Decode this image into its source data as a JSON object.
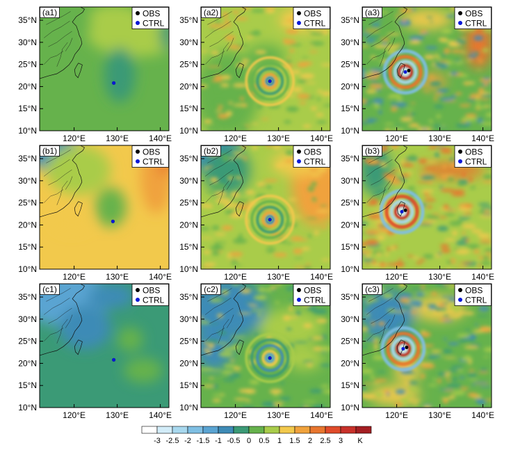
{
  "chart_data": {
    "type": "contour-map-grid",
    "rows": [
      "a",
      "b",
      "c"
    ],
    "columns": [
      1,
      2,
      3
    ],
    "panels": [
      {
        "label": "(a1)",
        "typhoon_center": {
          "lon": 129.2,
          "lat": 20.8
        }
      },
      {
        "label": "(a2)",
        "typhoon_center": {
          "lon": 128.0,
          "lat": 21.2
        }
      },
      {
        "label": "(a3)",
        "typhoon_center": {
          "lon": 122.0,
          "lat": 23.3
        }
      },
      {
        "label": "(b1)",
        "typhoon_center": {
          "lon": 129.0,
          "lat": 20.8
        }
      },
      {
        "label": "(b2)",
        "typhoon_center": {
          "lon": 128.0,
          "lat": 21.2
        }
      },
      {
        "label": "(b3)",
        "typhoon_center": {
          "lon": 121.2,
          "lat": 23.0
        }
      },
      {
        "label": "(c1)",
        "typhoon_center": {
          "lon": 129.2,
          "lat": 20.8
        }
      },
      {
        "label": "(c2)",
        "typhoon_center": {
          "lon": 128.0,
          "lat": 21.2
        }
      },
      {
        "label": "(c3)",
        "typhoon_center": {
          "lon": 121.5,
          "lat": 23.3
        }
      }
    ],
    "x_ticks": [
      {
        "value": 120,
        "label": "120°E"
      },
      {
        "value": 130,
        "label": "130°E"
      },
      {
        "value": 140,
        "label": "140°E"
      }
    ],
    "y_ticks": [
      {
        "value": 10,
        "label": "10°N"
      },
      {
        "value": 15,
        "label": "15°N"
      },
      {
        "value": 20,
        "label": "20°N"
      },
      {
        "value": 25,
        "label": "25°N"
      },
      {
        "value": 30,
        "label": "30°N"
      },
      {
        "value": 35,
        "label": "35°N"
      }
    ],
    "xlim": [
      112,
      142
    ],
    "ylim": [
      10,
      38
    ],
    "legend": [
      {
        "label": "OBS",
        "color": "#000000"
      },
      {
        "label": "CTRL",
        "color": "#0a18d6"
      }
    ],
    "legend_position": "top-right",
    "colorbar": {
      "unit": "K",
      "labels": [
        "-3",
        "-2.5",
        "-2",
        "-1.5",
        "-1",
        "-0.5",
        "0",
        "0.5",
        "1",
        "1.5",
        "2",
        "2.5",
        "3"
      ],
      "colors": [
        "#ffffff",
        "#d2ecf8",
        "#a8d8ee",
        "#7fbfe3",
        "#5aa4d2",
        "#3e8bb6",
        "#3b9a76",
        "#66b24c",
        "#a9cc4a",
        "#f2c94c",
        "#f0a23c",
        "#e8762e",
        "#e04b2a",
        "#c8312a",
        "#a41e22"
      ]
    },
    "colors": {
      "land": "#66b24c",
      "coast": "#111111"
    }
  }
}
